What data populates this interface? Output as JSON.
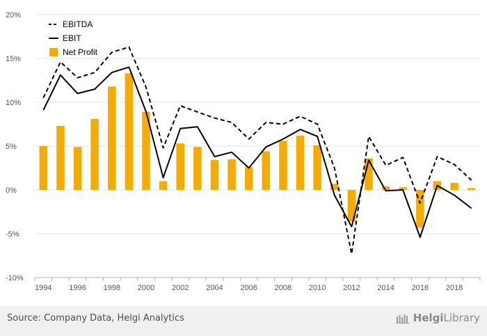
{
  "chart_data": {
    "type": "bar",
    "x": [
      1994,
      1995,
      1996,
      1997,
      1998,
      1999,
      2000,
      2001,
      2002,
      2003,
      2004,
      2005,
      2006,
      2007,
      2008,
      2009,
      2010,
      2011,
      2012,
      2013,
      2014,
      2015,
      2016,
      2017,
      2018,
      2019
    ],
    "x_tick_labels": [
      "1994",
      "1996",
      "1998",
      "2000",
      "2002",
      "2004",
      "2006",
      "2008",
      "2010",
      "2012",
      "2014",
      "2016",
      "2018"
    ],
    "y_tick_labels": [
      "20%",
      "15%",
      "10%",
      "5%",
      "0%",
      "-5%",
      "-10%"
    ],
    "ylim": [
      -10,
      20
    ],
    "grid": true,
    "legend_position": "top-left",
    "series": [
      {
        "name": "EBITDA",
        "kind": "line",
        "style": "dashed",
        "color": "#000000",
        "values": [
          10.5,
          14.6,
          12.8,
          13.4,
          15.7,
          16.3,
          11.7,
          4.8,
          9.6,
          8.9,
          8.2,
          7.7,
          5.8,
          7.7,
          7.5,
          8.4,
          7.5,
          2.5,
          -7.3,
          6.1,
          2.8,
          3.7,
          -1.5,
          3.8,
          2.9,
          1.1
        ]
      },
      {
        "name": "EBIT",
        "kind": "line",
        "style": "solid",
        "color": "#000000",
        "values": [
          9.1,
          13.1,
          11.0,
          11.5,
          13.4,
          14.0,
          8.9,
          1.4,
          7.0,
          7.2,
          3.8,
          4.3,
          2.5,
          4.9,
          5.8,
          6.9,
          6.1,
          -0.6,
          -4.2,
          3.4,
          -0.1,
          0.0,
          -5.4,
          0.5,
          -0.6,
          -2.1
        ]
      },
      {
        "name": "Net Profit",
        "kind": "bar",
        "color": "#f5ab00",
        "values": [
          5.0,
          7.3,
          4.9,
          8.1,
          11.8,
          13.3,
          8.9,
          1.0,
          5.3,
          4.9,
          3.4,
          3.5,
          2.6,
          4.4,
          5.6,
          6.2,
          5.1,
          0.7,
          -3.6,
          3.6,
          0.4,
          0.3,
          -4.3,
          1.0,
          0.8,
          0.2
        ]
      }
    ]
  },
  "footer": {
    "source": "Source: Company Data, Helgi Analytics",
    "brand_prefix": "Helgi",
    "brand_suffix": "Library"
  }
}
